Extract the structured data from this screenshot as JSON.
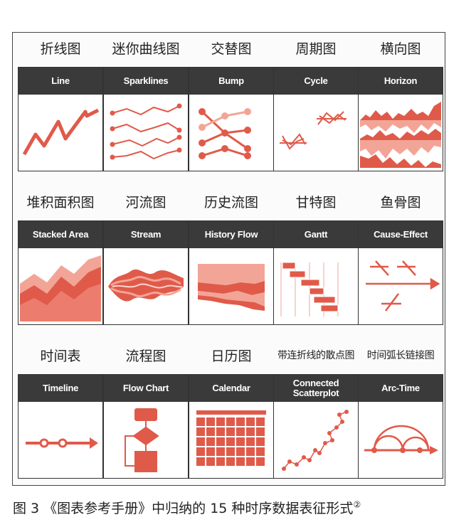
{
  "tiles": [
    {
      "cn": "折线图",
      "en": "Line",
      "icon": "line-icon"
    },
    {
      "cn": "迷你曲线图",
      "en": "Sparklines",
      "icon": "sparklines-icon"
    },
    {
      "cn": "交替图",
      "en": "Bump",
      "icon": "bump-icon"
    },
    {
      "cn": "周期图",
      "en": "Cycle",
      "icon": "cycle-icon"
    },
    {
      "cn": "横向图",
      "en": "Horizon",
      "icon": "horizon-icon"
    },
    {
      "cn": "堆积面积图",
      "en": "Stacked Area",
      "icon": "stacked-area-icon"
    },
    {
      "cn": "河流图",
      "en": "Stream",
      "icon": "stream-icon"
    },
    {
      "cn": "历史流图",
      "en": "History Flow",
      "icon": "history-flow-icon"
    },
    {
      "cn": "甘特图",
      "en": "Gantt",
      "icon": "gantt-icon"
    },
    {
      "cn": "鱼骨图",
      "en": "Cause-Effect",
      "icon": "cause-effect-icon"
    },
    {
      "cn": "时间表",
      "en": "Timeline",
      "icon": "timeline-icon"
    },
    {
      "cn": "流程图",
      "en": "Flow Chart",
      "icon": "flow-chart-icon"
    },
    {
      "cn": "日历图",
      "en": "Calendar",
      "icon": "calendar-icon"
    },
    {
      "cn": "带连折线的散点图",
      "en": "Connected Scatterplot",
      "icon": "connected-scatterplot-icon"
    },
    {
      "cn": "时间弧长链接图",
      "en": "Arc-Time",
      "icon": "arc-time-icon"
    }
  ],
  "caption": {
    "text": "图 3 《图表参考手册》中归纳的 15 种时序数据表征形式",
    "superscript": "②"
  },
  "colors": {
    "accent": "#e05a4a",
    "accent_light": "#f2a597",
    "header": "#3a3a3a"
  }
}
